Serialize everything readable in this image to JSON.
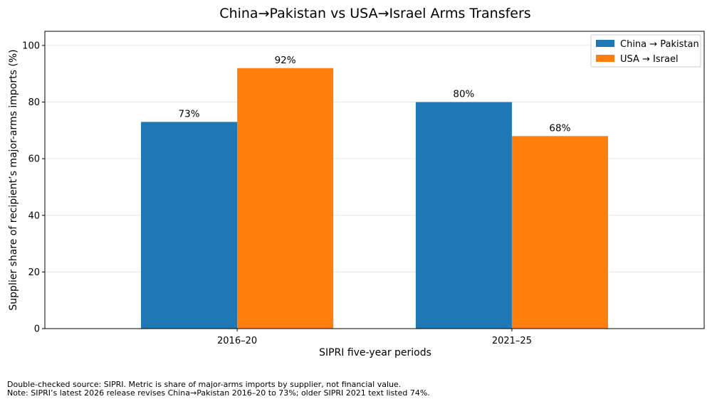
{
  "chart_data": {
    "type": "bar",
    "title": "China→Pakistan vs USA→Israel Arms Transfers",
    "xlabel": "SIPRI five-year periods",
    "ylabel": "Supplier share of recipient’s major-arms imports (%)",
    "categories": [
      "2016–20",
      "2021–25"
    ],
    "series": [
      {
        "name": "China → Pakistan",
        "values": [
          73,
          80
        ],
        "labels": [
          "73%",
          "80%"
        ],
        "color": "#1f77b4"
      },
      {
        "name": "USA → Israel",
        "values": [
          92,
          68
        ],
        "labels": [
          "92%",
          "68%"
        ],
        "color": "#ff7f0e"
      }
    ],
    "ylim": [
      0,
      105
    ],
    "yticks": [
      0,
      20,
      40,
      60,
      80,
      100
    ],
    "grid": "y",
    "legend_position": "top-right"
  },
  "footnotes": [
    "Double-checked source: SIPRI. Metric is share of major-arms imports by supplier, not financial value.",
    "Note: SIPRI’s latest 2026 release revises China→Pakistan 2016–20 to 73%; older SIPRI 2021 text listed 74%."
  ]
}
